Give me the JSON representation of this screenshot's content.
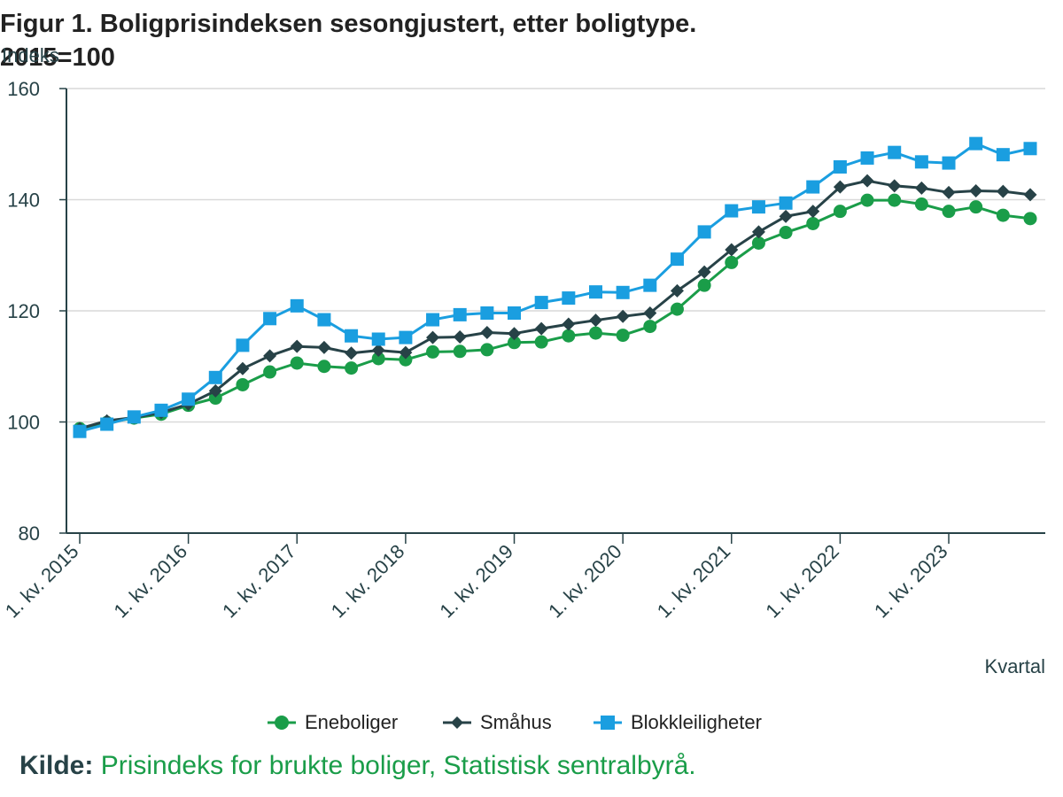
{
  "chart_data": {
    "type": "line",
    "title_line1": "Figur 1. Boligprisindeksen sesongjustert, etter boligtype.",
    "title_line2": "2015=100",
    "ylabel": "Indeks",
    "xlabel": "Kvartal",
    "ylim": [
      80,
      160
    ],
    "yticks": [
      80,
      100,
      120,
      140,
      160
    ],
    "grid": true,
    "legend_position": "bottom",
    "xtick_labels": [
      "1. kv. 2015",
      "1. kv. 2016",
      "1. kv. 2017",
      "1. kv. 2018",
      "1. kv. 2019",
      "1. kv. 2020",
      "1. kv. 2021",
      "1. kv. 2022",
      "1. kv. 2023"
    ],
    "xtick_indices": [
      0,
      4,
      8,
      12,
      16,
      20,
      24,
      28,
      32
    ],
    "categories": [
      "1. kv. 2015",
      "2. kv. 2015",
      "3. kv. 2015",
      "4. kv. 2015",
      "1. kv. 2016",
      "2. kv. 2016",
      "3. kv. 2016",
      "4. kv. 2016",
      "1. kv. 2017",
      "2. kv. 2017",
      "3. kv. 2017",
      "4. kv. 2017",
      "1. kv. 2018",
      "2. kv. 2018",
      "3. kv. 2018",
      "4. kv. 2018",
      "1. kv. 2019",
      "2. kv. 2019",
      "3. kv. 2019",
      "4. kv. 2019",
      "1. kv. 2020",
      "2. kv. 2020",
      "3. kv. 2020",
      "4. kv. 2020",
      "1. kv. 2021",
      "2. kv. 2021",
      "3. kv. 2021",
      "4. kv. 2021",
      "1. kv. 2022",
      "2. kv. 2022",
      "3. kv. 2022",
      "4. kv. 2022",
      "1. kv. 2023",
      "2. kv. 2023",
      "3. kv. 2023",
      "4. kv. 2023"
    ],
    "series": [
      {
        "name": "Eneboliger",
        "color": "#1a9d49",
        "marker": "circle",
        "values": [
          98.8,
          99.9,
          100.7,
          101.4,
          103.0,
          104.3,
          106.7,
          109.0,
          110.6,
          110.0,
          109.7,
          111.4,
          111.2,
          112.6,
          112.7,
          113.0,
          114.3,
          114.4,
          115.5,
          116.0,
          115.6,
          117.2,
          120.3,
          124.6,
          128.7,
          132.2,
          134.1,
          135.7,
          137.9,
          139.9,
          139.9,
          139.2,
          137.9,
          138.7,
          137.2,
          136.6
        ]
      },
      {
        "name": "Småhus",
        "color": "#274247",
        "marker": "diamond",
        "values": [
          98.8,
          100.2,
          100.8,
          101.7,
          103.2,
          105.6,
          109.6,
          111.9,
          113.6,
          113.4,
          112.4,
          112.9,
          112.5,
          115.2,
          115.3,
          116.1,
          115.9,
          116.8,
          117.6,
          118.3,
          119.0,
          119.6,
          123.6,
          127.0,
          131.0,
          134.2,
          137.0,
          137.9,
          142.3,
          143.4,
          142.5,
          142.1,
          141.3,
          141.6,
          141.5,
          140.9
        ]
      },
      {
        "name": "Blokkleiligheter",
        "color": "#1a9ee0",
        "marker": "square",
        "values": [
          98.3,
          99.6,
          100.9,
          102.1,
          104.1,
          108.0,
          113.8,
          118.6,
          120.9,
          118.4,
          115.5,
          114.9,
          115.2,
          118.4,
          119.3,
          119.6,
          119.6,
          121.5,
          122.3,
          123.4,
          123.3,
          124.6,
          129.3,
          134.2,
          138.0,
          138.7,
          139.4,
          142.3,
          145.9,
          147.5,
          148.5,
          146.8,
          146.6,
          150.1,
          148.1,
          149.2
        ]
      }
    ],
    "source_label": "Kilde:",
    "source_text": "Prisindeks for brukte boliger, Statistisk sentralbyrå."
  }
}
